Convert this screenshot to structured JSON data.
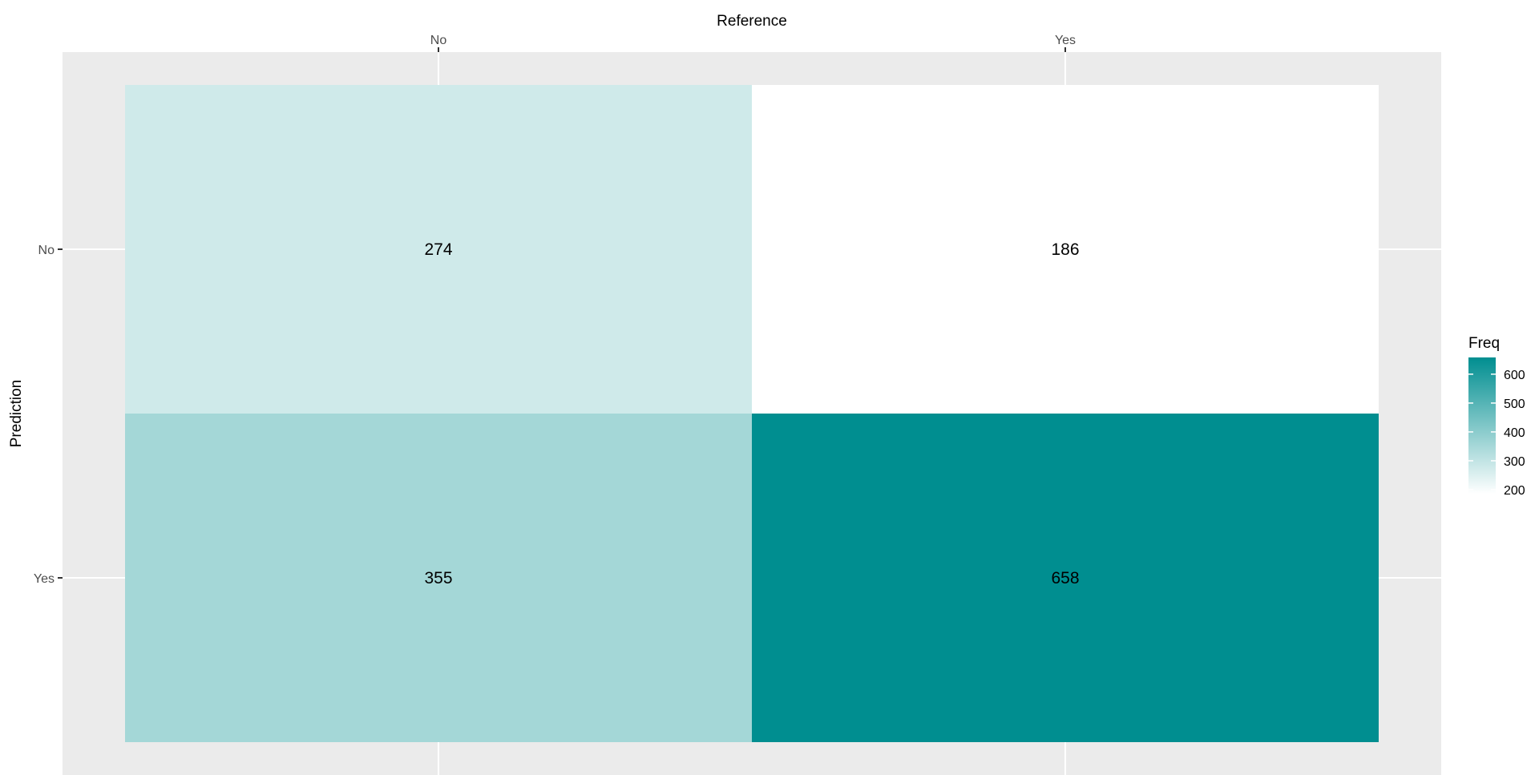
{
  "chart_data": {
    "type": "heatmap",
    "xlabel": "Reference",
    "ylabel": "Prediction",
    "x_categories": [
      "No",
      "Yes"
    ],
    "y_categories": [
      "No",
      "Yes"
    ],
    "values": [
      [
        274,
        186
      ],
      [
        355,
        658
      ]
    ],
    "x_axis_position": "top",
    "grid": true,
    "legend": {
      "title": "Freq",
      "placement": "right",
      "ticks": [
        200,
        300,
        400,
        500,
        600
      ],
      "range": [
        186,
        658
      ],
      "low_color": "#ffffff",
      "high_color": "#008e90"
    }
  },
  "colors": {
    "panel_background": "#ebebeb",
    "grid_line": "#ffffff",
    "tick_text": "#4d4d4d",
    "label_text": "#000000"
  }
}
